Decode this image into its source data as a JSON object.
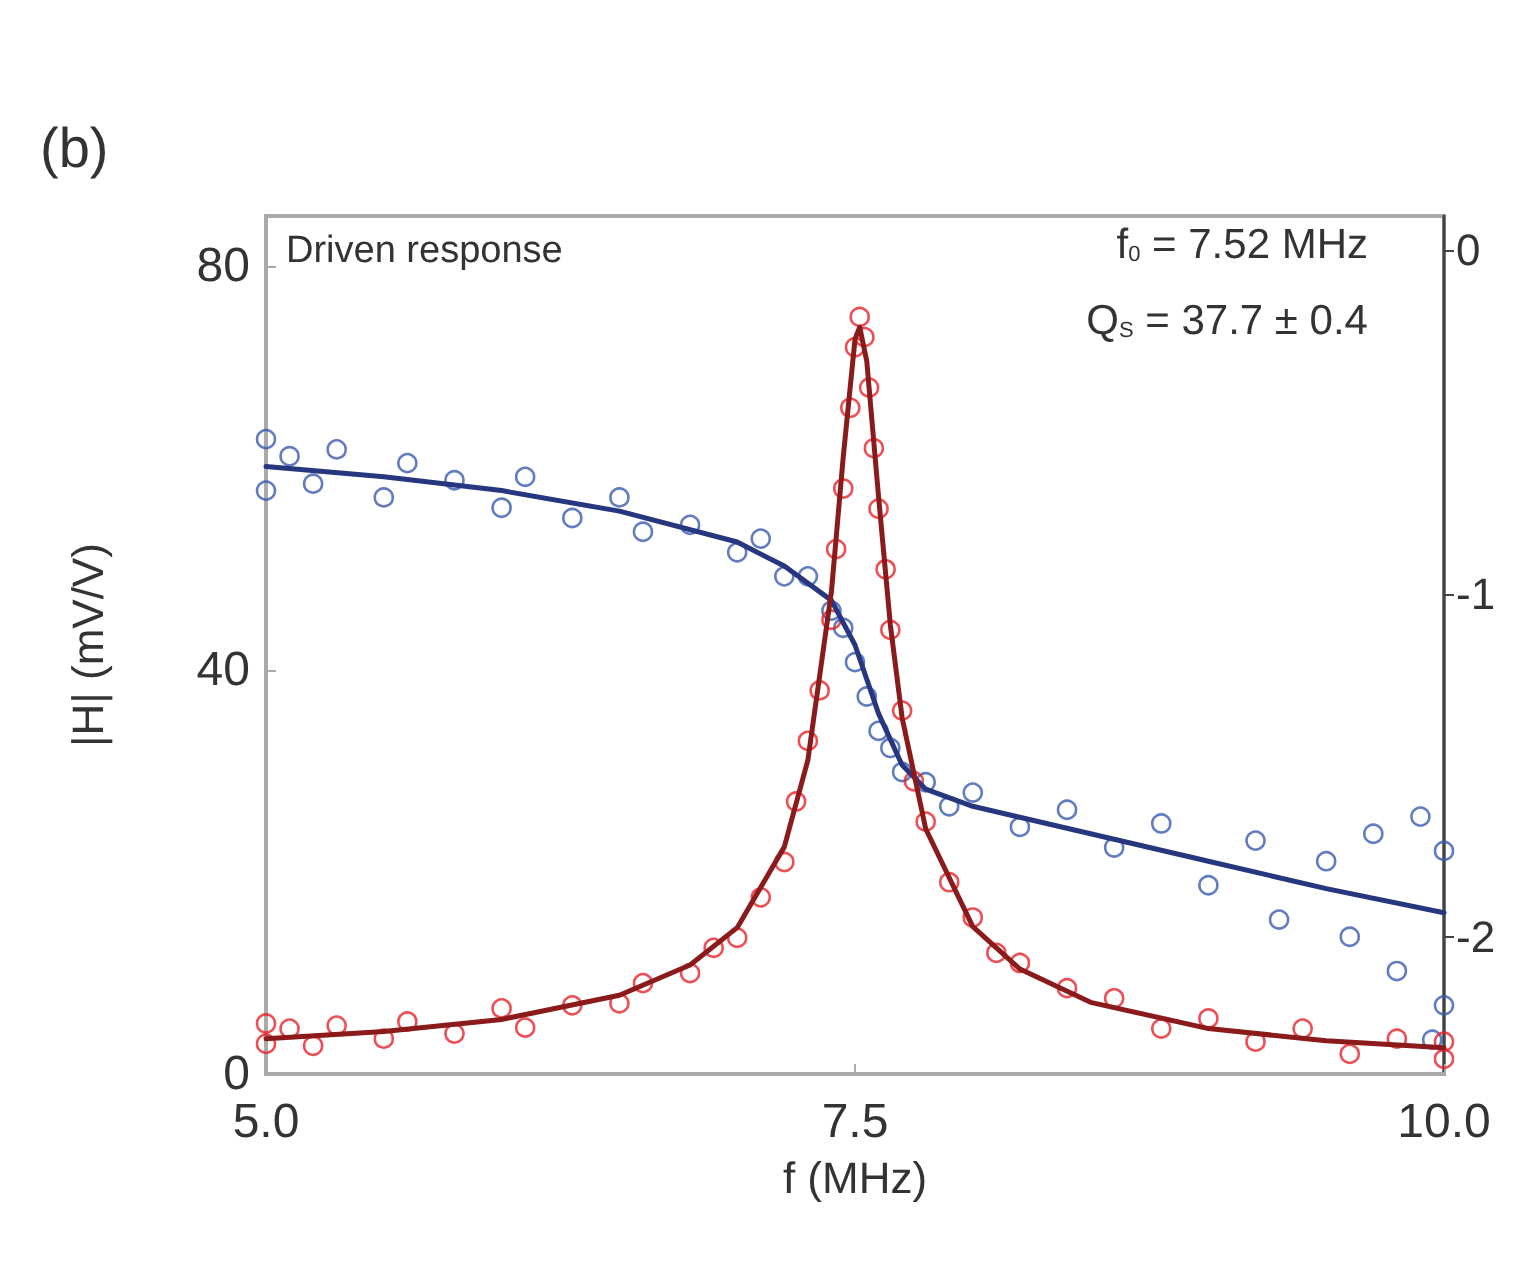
{
  "chart_data": {
    "type": "scatter",
    "xlabel": "f (MHz)",
    "ylabel": "|H| (mV/V)",
    "annotations": [
      "(b)",
      "Driven response",
      "f$_{0}$ = 7.52 MHz",
      "Q$_{S}$ = 37.7 ± 0.4"
    ],
    "xlim": [
      5,
      10
    ],
    "xticks": [
      {
        "value": 5,
        "label": "5.0"
      },
      {
        "value": 7.5,
        "label": "7.5"
      },
      {
        "value": 10,
        "label": "10.0"
      }
    ],
    "ylim": [
      0,
      85
    ],
    "yticks": [
      0,
      40,
      80
    ],
    "y2lim": [
      -2.4,
      0.1
    ],
    "y2ticks": [
      0,
      -1,
      -2
    ],
    "grid": false,
    "marker": "circle",
    "series": [
      {
        "axis": "y2",
        "color": "#3a5bb0",
        "x": [
          5.0,
          5.0,
          5.1,
          5.2,
          5.3,
          5.5,
          5.6,
          5.8,
          6.0,
          6.1,
          6.3,
          6.5,
          6.6,
          6.8,
          7.0,
          7.1,
          7.2,
          7.3,
          7.4,
          7.45,
          7.5,
          7.55,
          7.6,
          7.65,
          7.7,
          7.8,
          7.9,
          8.0,
          8.2,
          8.4,
          8.6,
          8.8,
          9.0,
          9.2,
          9.3,
          9.5,
          9.6,
          9.7,
          9.8,
          9.9,
          10.0,
          10.0,
          9.95
        ],
        "values": [
          -0.55,
          -0.7,
          -0.6,
          -0.68,
          -0.58,
          -0.72,
          -0.62,
          -0.67,
          -0.75,
          -0.66,
          -0.78,
          -0.72,
          -0.82,
          -0.8,
          -0.88,
          -0.84,
          -0.95,
          -0.95,
          -1.05,
          -1.1,
          -1.2,
          -1.3,
          -1.4,
          -1.45,
          -1.52,
          -1.55,
          -1.62,
          -1.58,
          -1.68,
          -1.63,
          -1.74,
          -1.67,
          -1.85,
          -1.72,
          -1.95,
          -1.78,
          -2.0,
          -1.7,
          -2.1,
          -1.65,
          -2.2,
          -1.75,
          -2.3
        ]
      },
      {
        "type": "line",
        "marker": "none",
        "axis": "y2",
        "color": "#26367f",
        "line_style": "solid",
        "x": [
          5.0,
          5.5,
          6.0,
          6.5,
          7.0,
          7.2,
          7.4,
          7.5,
          7.6,
          7.7,
          7.8,
          8.0,
          8.5,
          9.0,
          9.5,
          10.0
        ],
        "values": [
          -0.63,
          -0.66,
          -0.7,
          -0.76,
          -0.85,
          -0.92,
          -1.02,
          -1.15,
          -1.35,
          -1.5,
          -1.57,
          -1.62,
          -1.7,
          -1.78,
          -1.86,
          -1.93
        ]
      },
      {
        "color": "#e8232b",
        "x": [
          5.0,
          5.0,
          5.1,
          5.2,
          5.3,
          5.5,
          5.6,
          5.8,
          6.0,
          6.1,
          6.3,
          6.5,
          6.6,
          6.8,
          6.9,
          7.0,
          7.1,
          7.2,
          7.25,
          7.3,
          7.35,
          7.4,
          7.42,
          7.45,
          7.48,
          7.5,
          7.52,
          7.54,
          7.56,
          7.58,
          7.6,
          7.63,
          7.65,
          7.7,
          7.75,
          7.8,
          7.9,
          8.0,
          8.1,
          8.2,
          8.4,
          8.6,
          8.8,
          9.0,
          9.2,
          9.4,
          9.6,
          9.8,
          10.0,
          10.0
        ],
        "values": [
          3.0,
          5.0,
          4.5,
          2.8,
          4.8,
          3.5,
          5.2,
          4.0,
          6.5,
          4.6,
          6.8,
          7.0,
          9.0,
          10.0,
          12.5,
          13.5,
          17.5,
          21.0,
          27.0,
          33.0,
          38.0,
          45.0,
          52.0,
          58.0,
          66.0,
          72.0,
          75.0,
          73.0,
          68.0,
          62.0,
          56.0,
          50.0,
          44.0,
          36.0,
          29.0,
          25.0,
          19.0,
          15.5,
          12.0,
          11.0,
          8.5,
          7.5,
          4.5,
          5.5,
          3.2,
          4.5,
          2.0,
          3.5,
          1.5,
          3.2
        ]
      },
      {
        "type": "line",
        "marker": "none",
        "color": "#8b1a1a",
        "line_style": "solid",
        "x": [
          5.0,
          5.5,
          6.0,
          6.5,
          6.8,
          7.0,
          7.2,
          7.3,
          7.4,
          7.45,
          7.5,
          7.52,
          7.55,
          7.6,
          7.65,
          7.7,
          7.8,
          8.0,
          8.2,
          8.5,
          9.0,
          9.5,
          10.0
        ],
        "values": [
          3.5,
          4.2,
          5.4,
          7.8,
          10.8,
          14.5,
          22.5,
          31.1,
          47.8,
          61.1,
          72.8,
          74.0,
          70.6,
          57.2,
          44.5,
          35.3,
          24.3,
          14.6,
          10.4,
          7.1,
          4.5,
          3.3,
          2.6
        ]
      }
    ]
  }
}
